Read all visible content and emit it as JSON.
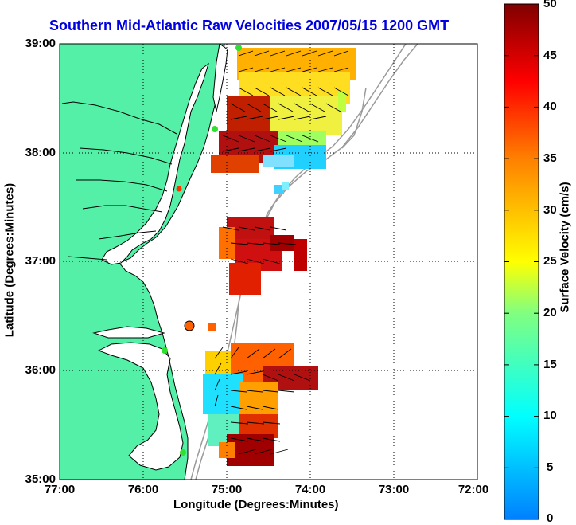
{
  "title": "Southern Mid-Atlantic Raw Velocities 2007/05/15 1200 GMT",
  "xlabel": "Longitude (Degrees:Minutes)",
  "ylabel": "Latitude (Degrees:Minutes)",
  "xticks": [
    "77:00",
    "76:00",
    "75:00",
    "74:00",
    "73:00",
    "72:00"
  ],
  "yticks": [
    "39:00",
    "38:00",
    "37:00",
    "36:00",
    "35:00"
  ],
  "colorbar": {
    "label": "Surface Velocity (cm/s)",
    "ticks": [
      "50",
      "45",
      "40",
      "35",
      "30",
      "25",
      "20",
      "15",
      "10",
      "5",
      "0"
    ]
  },
  "colors": {
    "land": "#55f0a8",
    "coastline": "#000000",
    "isobath": "#9a9a9a",
    "grid": "#000000",
    "title": "#0000e0"
  },
  "map_extent": {
    "lon": [
      "77:00",
      "72:00"
    ],
    "lat": [
      "35:00",
      "39:00"
    ]
  },
  "chart_data": {
    "type": "heatmap",
    "quantity": "Surface Velocity (cm/s)",
    "range": [
      0,
      50
    ],
    "colormap": "jet",
    "regions": [
      {
        "lon": "75:00 to 73:40",
        "lat": "37:50 to 39:00",
        "speed_cm_s": "20-50"
      },
      {
        "lon": "75:00 to 74:10",
        "lat": "36:40 to 37:20",
        "speed_cm_s": "40-50"
      },
      {
        "lon": "75:20 to 74:00",
        "lat": "35:00 to 36:20",
        "speed_cm_s": "8-50"
      }
    ]
  }
}
